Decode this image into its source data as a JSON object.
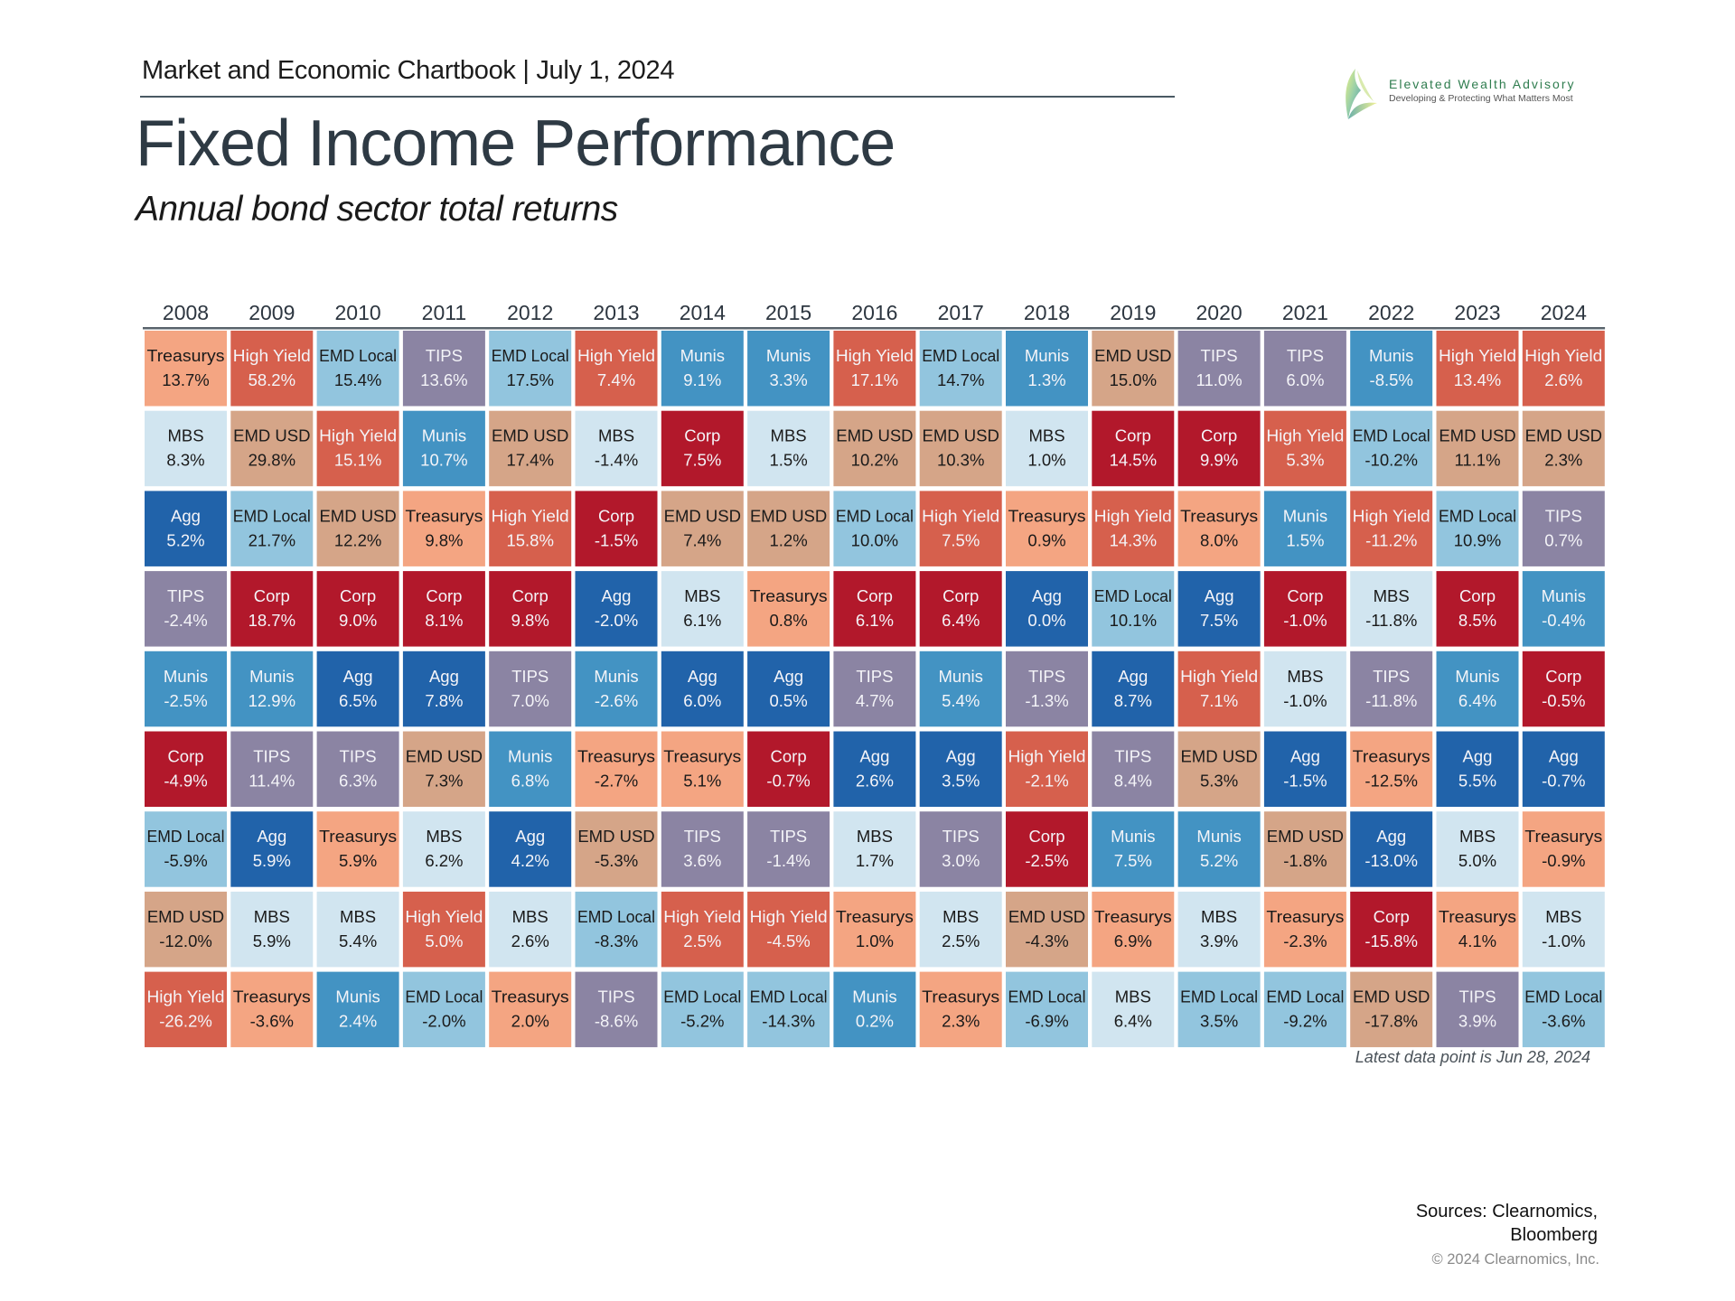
{
  "header": {
    "chartbook": "Market and Economic Chartbook | July 1, 2024",
    "title": "Fixed Income Performance",
    "subtitle": "Annual bond sector total returns"
  },
  "logo": {
    "name": "Elevated Wealth Advisory",
    "tagline": "Developing & Protecting What Matters Most"
  },
  "footer": {
    "latest": "Latest data point is Jun 28, 2024",
    "sources_line1": "Sources: Clearnomics,",
    "sources_line2": "Bloomberg",
    "copyright": "© 2024 Clearnomics, Inc."
  },
  "colors": {
    "Treasurys": "#f4a582",
    "High Yield": "#d6604d",
    "EMD Local": "#92c5de",
    "TIPS": "#8b84a3",
    "Munis": "#4393c3",
    "MBS": "#d1e5f0",
    "EMD USD": "#d5a588",
    "Corp": "#b2182b",
    "Agg": "#2163aa"
  },
  "light_text_sectors": [
    "High Yield",
    "TIPS",
    "Munis",
    "Corp",
    "Agg"
  ],
  "chart_data": {
    "type": "table",
    "title": "Fixed Income Performance",
    "subtitle": "Annual bond sector total returns",
    "columns": [
      "2008",
      "2009",
      "2010",
      "2011",
      "2012",
      "2013",
      "2014",
      "2015",
      "2016",
      "2017",
      "2018",
      "2019",
      "2020",
      "2021",
      "2022",
      "2023",
      "2024"
    ],
    "ranked": [
      [
        [
          "Treasurys",
          "13.7%"
        ],
        [
          "MBS",
          "8.3%"
        ],
        [
          "Agg",
          "5.2%"
        ],
        [
          "TIPS",
          "-2.4%"
        ],
        [
          "Munis",
          "-2.5%"
        ],
        [
          "Corp",
          "-4.9%"
        ],
        [
          "EMD Local",
          "-5.9%"
        ],
        [
          "EMD USD",
          "-12.0%"
        ],
        [
          "High Yield",
          "-26.2%"
        ]
      ],
      [
        [
          "High Yield",
          "58.2%"
        ],
        [
          "EMD USD",
          "29.8%"
        ],
        [
          "EMD Local",
          "21.7%"
        ],
        [
          "Corp",
          "18.7%"
        ],
        [
          "Munis",
          "12.9%"
        ],
        [
          "TIPS",
          "11.4%"
        ],
        [
          "Agg",
          "5.9%"
        ],
        [
          "MBS",
          "5.9%"
        ],
        [
          "Treasurys",
          "-3.6%"
        ]
      ],
      [
        [
          "EMD Local",
          "15.4%"
        ],
        [
          "High Yield",
          "15.1%"
        ],
        [
          "EMD USD",
          "12.2%"
        ],
        [
          "Corp",
          "9.0%"
        ],
        [
          "Agg",
          "6.5%"
        ],
        [
          "TIPS",
          "6.3%"
        ],
        [
          "Treasurys",
          "5.9%"
        ],
        [
          "MBS",
          "5.4%"
        ],
        [
          "Munis",
          "2.4%"
        ]
      ],
      [
        [
          "TIPS",
          "13.6%"
        ],
        [
          "Munis",
          "10.7%"
        ],
        [
          "Treasurys",
          "9.8%"
        ],
        [
          "Corp",
          "8.1%"
        ],
        [
          "Agg",
          "7.8%"
        ],
        [
          "EMD USD",
          "7.3%"
        ],
        [
          "MBS",
          "6.2%"
        ],
        [
          "High Yield",
          "5.0%"
        ],
        [
          "EMD Local",
          "-2.0%"
        ]
      ],
      [
        [
          "EMD Local",
          "17.5%"
        ],
        [
          "EMD USD",
          "17.4%"
        ],
        [
          "High Yield",
          "15.8%"
        ],
        [
          "Corp",
          "9.8%"
        ],
        [
          "TIPS",
          "7.0%"
        ],
        [
          "Munis",
          "6.8%"
        ],
        [
          "Agg",
          "4.2%"
        ],
        [
          "MBS",
          "2.6%"
        ],
        [
          "Treasurys",
          "2.0%"
        ]
      ],
      [
        [
          "High Yield",
          "7.4%"
        ],
        [
          "MBS",
          "-1.4%"
        ],
        [
          "Corp",
          "-1.5%"
        ],
        [
          "Agg",
          "-2.0%"
        ],
        [
          "Munis",
          "-2.6%"
        ],
        [
          "Treasurys",
          "-2.7%"
        ],
        [
          "EMD USD",
          "-5.3%"
        ],
        [
          "EMD Local",
          "-8.3%"
        ],
        [
          "TIPS",
          "-8.6%"
        ]
      ],
      [
        [
          "Munis",
          "9.1%"
        ],
        [
          "Corp",
          "7.5%"
        ],
        [
          "EMD USD",
          "7.4%"
        ],
        [
          "MBS",
          "6.1%"
        ],
        [
          "Agg",
          "6.0%"
        ],
        [
          "Treasurys",
          "5.1%"
        ],
        [
          "TIPS",
          "3.6%"
        ],
        [
          "High Yield",
          "2.5%"
        ],
        [
          "EMD Local",
          "-5.2%"
        ]
      ],
      [
        [
          "Munis",
          "3.3%"
        ],
        [
          "MBS",
          "1.5%"
        ],
        [
          "EMD USD",
          "1.2%"
        ],
        [
          "Treasurys",
          "0.8%"
        ],
        [
          "Agg",
          "0.5%"
        ],
        [
          "Corp",
          "-0.7%"
        ],
        [
          "TIPS",
          "-1.4%"
        ],
        [
          "High Yield",
          "-4.5%"
        ],
        [
          "EMD Local",
          "-14.3%"
        ]
      ],
      [
        [
          "High Yield",
          "17.1%"
        ],
        [
          "EMD USD",
          "10.2%"
        ],
        [
          "EMD Local",
          "10.0%"
        ],
        [
          "Corp",
          "6.1%"
        ],
        [
          "TIPS",
          "4.7%"
        ],
        [
          "Agg",
          "2.6%"
        ],
        [
          "MBS",
          "1.7%"
        ],
        [
          "Treasurys",
          "1.0%"
        ],
        [
          "Munis",
          "0.2%"
        ]
      ],
      [
        [
          "EMD Local",
          "14.7%"
        ],
        [
          "EMD USD",
          "10.3%"
        ],
        [
          "High Yield",
          "7.5%"
        ],
        [
          "Corp",
          "6.4%"
        ],
        [
          "Munis",
          "5.4%"
        ],
        [
          "Agg",
          "3.5%"
        ],
        [
          "TIPS",
          "3.0%"
        ],
        [
          "MBS",
          "2.5%"
        ],
        [
          "Treasurys",
          "2.3%"
        ]
      ],
      [
        [
          "Munis",
          "1.3%"
        ],
        [
          "MBS",
          "1.0%"
        ],
        [
          "Treasurys",
          "0.9%"
        ],
        [
          "Agg",
          "0.0%"
        ],
        [
          "TIPS",
          "-1.3%"
        ],
        [
          "High Yield",
          "-2.1%"
        ],
        [
          "Corp",
          "-2.5%"
        ],
        [
          "EMD USD",
          "-4.3%"
        ],
        [
          "EMD Local",
          "-6.9%"
        ]
      ],
      [
        [
          "EMD USD",
          "15.0%"
        ],
        [
          "Corp",
          "14.5%"
        ],
        [
          "High Yield",
          "14.3%"
        ],
        [
          "EMD Local",
          "10.1%"
        ],
        [
          "Agg",
          "8.7%"
        ],
        [
          "TIPS",
          "8.4%"
        ],
        [
          "Munis",
          "7.5%"
        ],
        [
          "Treasurys",
          "6.9%"
        ],
        [
          "MBS",
          "6.4%"
        ]
      ],
      [
        [
          "TIPS",
          "11.0%"
        ],
        [
          "Corp",
          "9.9%"
        ],
        [
          "Treasurys",
          "8.0%"
        ],
        [
          "Agg",
          "7.5%"
        ],
        [
          "High Yield",
          "7.1%"
        ],
        [
          "EMD USD",
          "5.3%"
        ],
        [
          "Munis",
          "5.2%"
        ],
        [
          "MBS",
          "3.9%"
        ],
        [
          "EMD Local",
          "3.5%"
        ]
      ],
      [
        [
          "TIPS",
          "6.0%"
        ],
        [
          "High Yield",
          "5.3%"
        ],
        [
          "Munis",
          "1.5%"
        ],
        [
          "Corp",
          "-1.0%"
        ],
        [
          "MBS",
          "-1.0%"
        ],
        [
          "Agg",
          "-1.5%"
        ],
        [
          "EMD USD",
          "-1.8%"
        ],
        [
          "Treasurys",
          "-2.3%"
        ],
        [
          "EMD Local",
          "-9.2%"
        ]
      ],
      [
        [
          "Munis",
          "-8.5%"
        ],
        [
          "EMD Local",
          "-10.2%"
        ],
        [
          "High Yield",
          "-11.2%"
        ],
        [
          "MBS",
          "-11.8%"
        ],
        [
          "TIPS",
          "-11.8%"
        ],
        [
          "Treasurys",
          "-12.5%"
        ],
        [
          "Agg",
          "-13.0%"
        ],
        [
          "Corp",
          "-15.8%"
        ],
        [
          "EMD USD",
          "-17.8%"
        ]
      ],
      [
        [
          "High Yield",
          "13.4%"
        ],
        [
          "EMD USD",
          "11.1%"
        ],
        [
          "EMD Local",
          "10.9%"
        ],
        [
          "Corp",
          "8.5%"
        ],
        [
          "Munis",
          "6.4%"
        ],
        [
          "Agg",
          "5.5%"
        ],
        [
          "MBS",
          "5.0%"
        ],
        [
          "Treasurys",
          "4.1%"
        ],
        [
          "TIPS",
          "3.9%"
        ]
      ],
      [
        [
          "High Yield",
          "2.6%"
        ],
        [
          "EMD USD",
          "2.3%"
        ],
        [
          "TIPS",
          "0.7%"
        ],
        [
          "Munis",
          "-0.4%"
        ],
        [
          "Corp",
          "-0.5%"
        ],
        [
          "Agg",
          "-0.7%"
        ],
        [
          "Treasurys",
          "-0.9%"
        ],
        [
          "MBS",
          "-1.0%"
        ],
        [
          "EMD Local",
          "-3.6%"
        ]
      ]
    ]
  }
}
